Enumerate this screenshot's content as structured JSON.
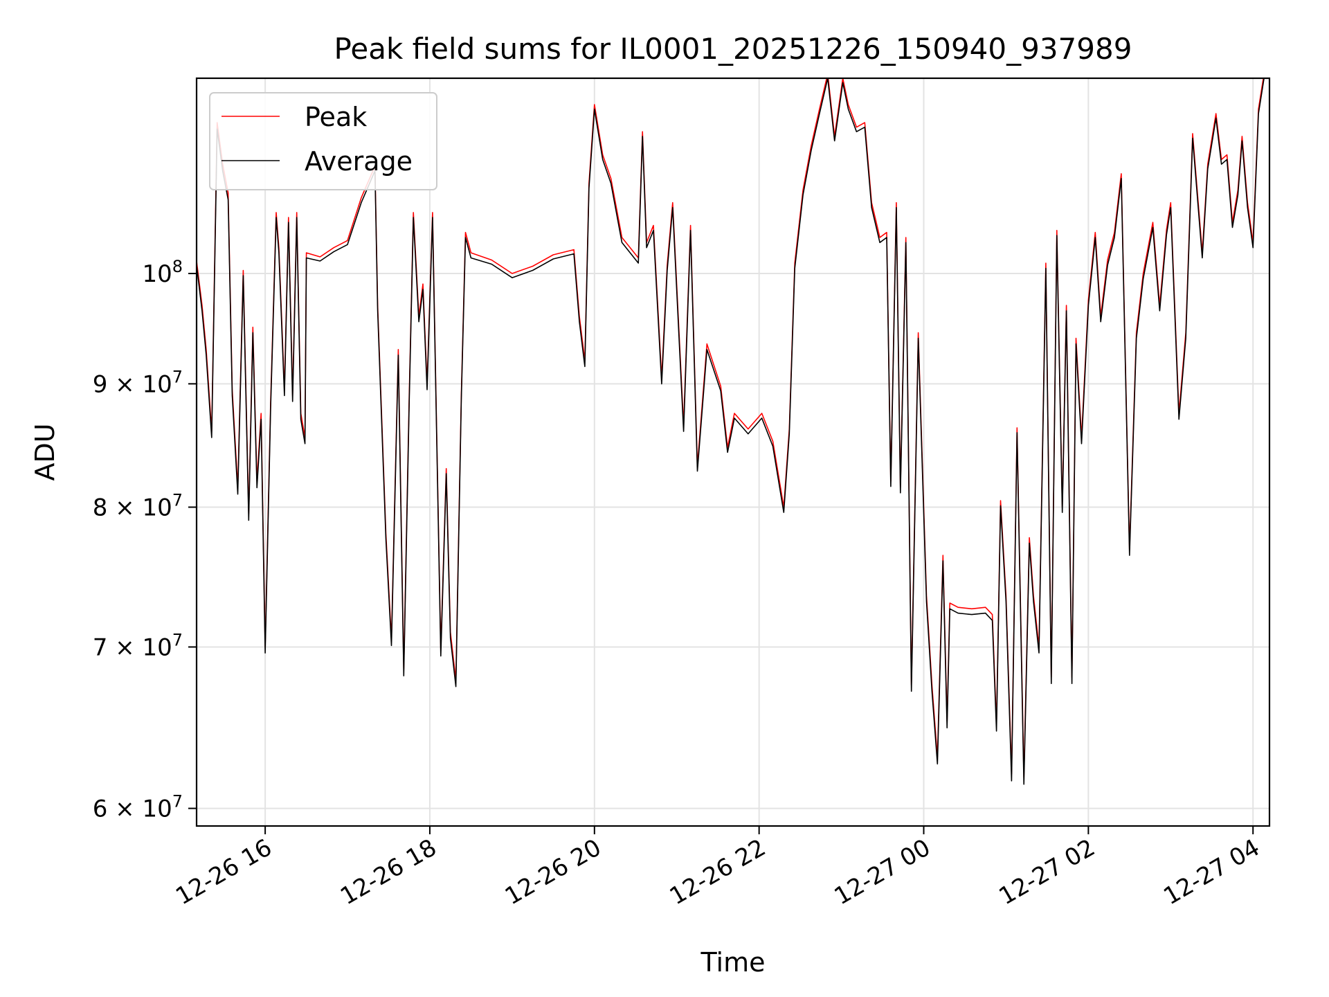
{
  "chart_data": {
    "type": "line",
    "title": "Peak field sums for IL0001_20251226_150940_937989",
    "xlabel": "Time",
    "ylabel": "ADU",
    "yscale": "log",
    "ylim": [
      59000000,
      120500000
    ],
    "xlim": [
      "2025-12-26 15:10",
      "2025-12-27 04:12"
    ],
    "grid": true,
    "legend": "top-left",
    "xticks": [
      {
        "t": "2025-12-26 16:00",
        "label": "12-26 16"
      },
      {
        "t": "2025-12-26 18:00",
        "label": "12-26 18"
      },
      {
        "t": "2025-12-26 20:00",
        "label": "12-26 20"
      },
      {
        "t": "2025-12-26 22:00",
        "label": "12-26 22"
      },
      {
        "t": "2025-12-27 00:00",
        "label": "12-27 00"
      },
      {
        "t": "2025-12-27 02:00",
        "label": "12-27 02"
      },
      {
        "t": "2025-12-27 04:00",
        "label": "12-27 04"
      }
    ],
    "yticks": [
      {
        "v": 60000000,
        "mant": "6",
        "exp": "7"
      },
      {
        "v": 70000000,
        "mant": "7",
        "exp": "7"
      },
      {
        "v": 80000000,
        "mant": "8",
        "exp": "7"
      },
      {
        "v": 90000000,
        "mant": "9",
        "exp": "7"
      },
      {
        "v": 100000000,
        "mant": "",
        "exp": "8"
      }
    ],
    "x": [
      "2025-12-26 15:10",
      "2025-12-26 15:14",
      "2025-12-26 15:17",
      "2025-12-26 15:21",
      "2025-12-26 15:25",
      "2025-12-26 15:29",
      "2025-12-26 15:33",
      "2025-12-26 15:36",
      "2025-12-26 15:40",
      "2025-12-26 15:44",
      "2025-12-26 15:48",
      "2025-12-26 15:51",
      "2025-12-26 15:54",
      "2025-12-26 15:57",
      "2025-12-26 16:00",
      "2025-12-26 16:04",
      "2025-12-26 16:08",
      "2025-12-26 16:10",
      "2025-12-26 16:14",
      "2025-12-26 16:17",
      "2025-12-26 16:20",
      "2025-12-26 16:23",
      "2025-12-26 16:26",
      "2025-12-26 16:29",
      "2025-12-26 16:30",
      "2025-12-26 16:40",
      "2025-12-26 16:50",
      "2025-12-26 17:00",
      "2025-12-26 17:10",
      "2025-12-26 17:20",
      "2025-12-26 17:22",
      "2025-12-26 17:28",
      "2025-12-26 17:32",
      "2025-12-26 17:37",
      "2025-12-26 17:41",
      "2025-12-26 17:45",
      "2025-12-26 17:48",
      "2025-12-26 17:52",
      "2025-12-26 17:55",
      "2025-12-26 17:58",
      "2025-12-26 18:02",
      "2025-12-26 18:08",
      "2025-12-26 18:12",
      "2025-12-26 18:15",
      "2025-12-26 18:19",
      "2025-12-26 18:23",
      "2025-12-26 18:26",
      "2025-12-26 18:30",
      "2025-12-26 18:45",
      "2025-12-26 19:00",
      "2025-12-26 19:15",
      "2025-12-26 19:30",
      "2025-12-26 19:45",
      "2025-12-26 19:49",
      "2025-12-26 19:53",
      "2025-12-26 19:56",
      "2025-12-26 20:00",
      "2025-12-26 20:06",
      "2025-12-26 20:12",
      "2025-12-26 20:20",
      "2025-12-26 20:32",
      "2025-12-26 20:35",
      "2025-12-26 20:38",
      "2025-12-26 20:43",
      "2025-12-26 20:49",
      "2025-12-26 20:53",
      "2025-12-26 20:57",
      "2025-12-26 21:05",
      "2025-12-26 21:10",
      "2025-12-26 21:15",
      "2025-12-26 21:22",
      "2025-12-26 21:32",
      "2025-12-26 21:37",
      "2025-12-26 21:42",
      "2025-12-26 21:52",
      "2025-12-26 22:02",
      "2025-12-26 22:10",
      "2025-12-26 22:18",
      "2025-12-26 22:22",
      "2025-12-26 22:26",
      "2025-12-26 22:32",
      "2025-12-26 22:38",
      "2025-12-26 22:44",
      "2025-12-26 22:50",
      "2025-12-26 22:55",
      "2025-12-26 23:01",
      "2025-12-26 23:05",
      "2025-12-26 23:11",
      "2025-12-26 23:17",
      "2025-12-26 23:22",
      "2025-12-26 23:28",
      "2025-12-26 23:33",
      "2025-12-26 23:36",
      "2025-12-26 23:40",
      "2025-12-26 23:43",
      "2025-12-26 23:47",
      "2025-12-26 23:51",
      "2025-12-26 23:56",
      "2025-12-27 00:02",
      "2025-12-27 00:06",
      "2025-12-27 00:10",
      "2025-12-27 00:14",
      "2025-12-27 00:17",
      "2025-12-27 00:19",
      "2025-12-27 00:25",
      "2025-12-27 00:35",
      "2025-12-27 00:45",
      "2025-12-27 00:50",
      "2025-12-27 00:53",
      "2025-12-27 00:56",
      "2025-12-27 01:00",
      "2025-12-27 01:04",
      "2025-12-27 01:08",
      "2025-12-27 01:13",
      "2025-12-27 01:17",
      "2025-12-27 01:20",
      "2025-12-27 01:24",
      "2025-12-27 01:29",
      "2025-12-27 01:33",
      "2025-12-27 01:37",
      "2025-12-27 01:41",
      "2025-12-27 01:44",
      "2025-12-27 01:48",
      "2025-12-27 01:51",
      "2025-12-27 01:55",
      "2025-12-27 02:00",
      "2025-12-27 02:05",
      "2025-12-27 02:09",
      "2025-12-27 02:14",
      "2025-12-27 02:19",
      "2025-12-27 02:24",
      "2025-12-27 02:30",
      "2025-12-27 02:35",
      "2025-12-27 02:40",
      "2025-12-27 02:47",
      "2025-12-27 02:52",
      "2025-12-27 02:57",
      "2025-12-27 03:00",
      "2025-12-27 03:06",
      "2025-12-27 03:11",
      "2025-12-27 03:16",
      "2025-12-27 03:23",
      "2025-12-27 03:27",
      "2025-12-27 03:33",
      "2025-12-27 03:37",
      "2025-12-27 03:41",
      "2025-12-27 03:45",
      "2025-12-27 03:49",
      "2025-12-27 03:52",
      "2025-12-27 03:56",
      "2025-12-27 04:00",
      "2025-12-27 04:04",
      "2025-12-27 04:09",
      "2025-12-27 04:12"
    ],
    "series": [
      {
        "name": "Peak",
        "color": "#ff0000",
        "values": [
          101200000,
          97000000,
          93000000,
          86000000,
          115500000,
          111000000,
          108000000,
          89500000,
          81500000,
          100300000,
          79500000,
          95000000,
          82000000,
          87500000,
          70000000,
          88500000,
          106000000,
          102500000,
          89500000,
          105500000,
          89000000,
          106000000,
          87500000,
          85500000,
          102000000,
          101600000,
          102500000,
          103200000,
          107500000,
          110800000,
          97000000,
          78000000,
          70500000,
          93000000,
          68500000,
          89000000,
          106000000,
          96000000,
          99000000,
          90000000,
          106000000,
          69800000,
          83000000,
          71000000,
          67800000,
          89200000,
          104000000,
          102000000,
          101300000,
          100000000,
          100700000,
          101800000,
          102300000,
          96000000,
          92000000,
          109000000,
          117500000,
          112000000,
          109500000,
          103500000,
          101500000,
          114500000,
          103000000,
          104700000,
          90500000,
          100800000,
          107000000,
          86500000,
          104700000,
          83200000,
          93500000,
          89800000,
          84700000,
          87500000,
          86200000,
          87500000,
          85200000,
          80000000,
          86200000,
          101000000,
          108300000,
          113000000,
          117000000,
          121000000,
          114000000,
          120500000,
          117500000,
          115000000,
          115500000,
          107000000,
          103500000,
          104000000,
          82000000,
          107000000,
          81500000,
          103500000,
          67500000,
          94500000,
          73500000,
          67500000,
          63000000,
          76400000,
          65200000,
          73000000,
          72700000,
          72600000,
          72700000,
          72200000,
          65000000,
          80500000,
          73500000,
          62000000,
          86300000,
          61800000,
          77700000,
          73500000,
          70000000,
          101000000,
          68000000,
          104200000,
          80000000,
          97000000,
          68000000,
          94000000,
          85500000,
          97500000,
          104000000,
          96000000,
          101300000,
          104000000,
          110000000,
          76800000,
          94500000,
          100000000,
          105000000,
          97000000,
          104300000,
          107000000,
          87500000,
          94500000,
          114300000,
          102000000,
          111000000,
          116500000,
          111500000,
          112000000,
          105000000,
          108300000,
          114000000,
          107000000,
          103000000,
          117000000,
          122000000,
          121500000
        ]
      },
      {
        "name": "Average",
        "color": "#000000",
        "values": [
          100800000,
          96500000,
          92500000,
          85500000,
          114800000,
          110300000,
          107300000,
          89000000,
          81000000,
          99800000,
          79000000,
          94500000,
          81500000,
          87000000,
          69600000,
          88000000,
          105500000,
          102000000,
          89000000,
          105000000,
          88500000,
          105500000,
          87000000,
          85000000,
          101500000,
          101200000,
          102100000,
          102800000,
          107000000,
          110300000,
          96500000,
          77600000,
          70100000,
          92500000,
          68100000,
          88500000,
          105500000,
          95500000,
          98500000,
          89500000,
          105500000,
          69400000,
          82600000,
          70600000,
          67400000,
          88800000,
          103500000,
          101500000,
          100900000,
          99600000,
          100300000,
          101400000,
          101900000,
          95500000,
          91500000,
          108500000,
          117000000,
          111500000,
          109000000,
          103000000,
          101000000,
          114000000,
          102500000,
          104200000,
          90000000,
          100300000,
          106500000,
          86000000,
          104200000,
          82800000,
          93000000,
          89400000,
          84300000,
          87100000,
          85800000,
          87100000,
          84800000,
          79600000,
          85800000,
          100500000,
          107800000,
          112500000,
          116500000,
          120500000,
          113500000,
          120000000,
          117000000,
          114500000,
          115000000,
          106500000,
          103000000,
          103500000,
          81600000,
          106500000,
          81100000,
          103000000,
          67100000,
          94000000,
          73100000,
          67100000,
          62600000,
          76000000,
          64800000,
          72600000,
          72300000,
          72200000,
          72300000,
          71800000,
          64600000,
          80100000,
          73100000,
          61600000,
          85900000,
          61400000,
          77300000,
          73100000,
          69600000,
          100500000,
          67600000,
          103700000,
          79600000,
          96500000,
          67600000,
          93500000,
          85000000,
          97000000,
          103500000,
          95500000,
          100800000,
          103500000,
          109500000,
          76400000,
          94000000,
          99500000,
          104500000,
          96500000,
          103800000,
          106500000,
          87000000,
          94000000,
          113800000,
          101500000,
          110500000,
          116000000,
          111000000,
          111500000,
          104500000,
          107800000,
          113500000,
          106500000,
          102500000,
          116500000,
          121500000,
          121000000
        ]
      }
    ]
  }
}
